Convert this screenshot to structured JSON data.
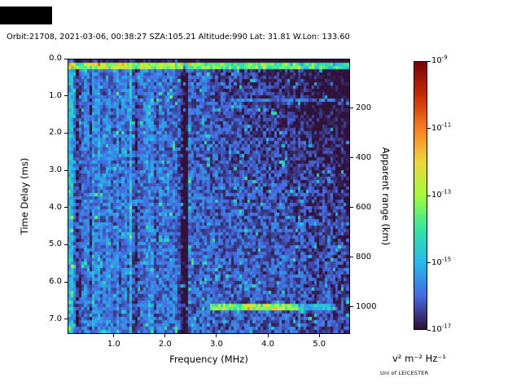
{
  "header": {
    "title": "Orbit:21708, 2021-03-06, 00:38:27 SZA:105.21 Altitude:990 Lat: 31.81 W.Lon: 133.60"
  },
  "chart_data": {
    "type": "heatmap",
    "title": "Orbit:21708, 2021-03-06, 00:38:27 SZA:105.21 Altitude:990 Lat: 31.81 W.Lon: 133.60",
    "xlabel": "Frequency (MHz)",
    "ylabel_left": "Time Delay (ms)",
    "ylabel_right": "Apparent range (km)",
    "x_range_mhz": [
      0.1,
      5.6
    ],
    "x_ticks_mhz": [
      1.0,
      2.0,
      3.0,
      4.0,
      5.0
    ],
    "y_range_ms": [
      0.0,
      7.4
    ],
    "y_ticks_ms": [
      0.0,
      1.0,
      2.0,
      3.0,
      4.0,
      5.0,
      6.0,
      7.0
    ],
    "right_axis_ticks_km": [
      200,
      400,
      600,
      800,
      1000
    ],
    "km_per_ms": 150,
    "value_range_exp": [
      -17,
      -9
    ],
    "colorbar": {
      "ticks_exp": [
        -9,
        -11,
        -13,
        -15,
        -17
      ],
      "unit_label": "v² m⁻² Hz⁻¹",
      "colormap": "turbo",
      "top_color": "#7a0403",
      "bottom_color": "#30123b"
    },
    "credit": "Uni of LEICESTER",
    "colormap_stops": [
      [
        0.0,
        48,
        18,
        59
      ],
      [
        0.125,
        70,
        107,
        227
      ],
      [
        0.25,
        36,
        187,
        235
      ],
      [
        0.375,
        49,
        231,
        160
      ],
      [
        0.5,
        164,
        252,
        60
      ],
      [
        0.625,
        237,
        217,
        56
      ],
      [
        0.75,
        251,
        126,
        33
      ],
      [
        0.875,
        202,
        42,
        4
      ],
      [
        1.0,
        122,
        4,
        3
      ]
    ],
    "grid": {
      "nx": 105,
      "ny": 84,
      "seed": 20210306
    },
    "noise": {
      "base_exp": -16.0,
      "spread": 1.4
    },
    "features": {
      "h_lines": [
        {
          "t": 0.19,
          "halfw": 0.09,
          "f1": 0.1,
          "f2": 5.6,
          "dv": 2.9
        },
        {
          "t": 1.12,
          "halfw": 0.05,
          "f1": 3.3,
          "f2": 5.6,
          "dv": 0.8
        },
        {
          "t": 6.68,
          "halfw": 0.1,
          "f1": 2.9,
          "f2": 4.62,
          "dv": 3.0
        },
        {
          "t": 6.68,
          "halfw": 0.09,
          "f1": 4.62,
          "f2": 5.35,
          "dv": 1.4
        }
      ],
      "v_lines": [
        {
          "f": 0.14,
          "halfw": 0.045,
          "dv": 1.0
        },
        {
          "f": 0.27,
          "halfw": 0.02,
          "dv": -1.1
        },
        {
          "f": 0.345,
          "halfw": 0.015,
          "dv": -0.9
        },
        {
          "f": 0.55,
          "halfw": 0.015,
          "dv": -0.65
        },
        {
          "f": 0.82,
          "halfw": 0.012,
          "dv": -0.5
        },
        {
          "f": 1.33,
          "halfw": 0.02,
          "dv": 0.85
        },
        {
          "f": 1.43,
          "halfw": 0.013,
          "dv": -0.7
        },
        {
          "f": 2.32,
          "halfw": 0.02,
          "dv": -0.7
        },
        {
          "f": 2.41,
          "halfw": 0.07,
          "dv": -1.6
        }
      ]
    }
  }
}
